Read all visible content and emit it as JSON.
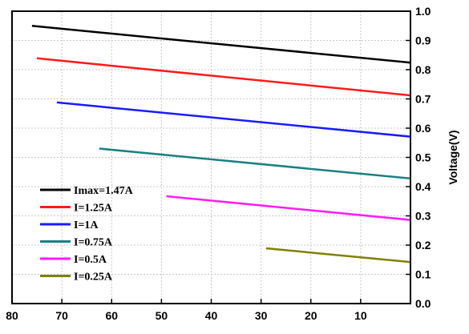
{
  "chart_data": {
    "type": "line",
    "title": "",
    "xlabel": "",
    "ylabel": "Voltage(V)",
    "xlim": [
      80,
      0
    ],
    "ylim": [
      0.0,
      1.0
    ],
    "x_ticks": [
      80,
      70,
      60,
      50,
      40,
      30,
      20,
      10
    ],
    "y_ticks": [
      0.0,
      0.1,
      0.2,
      0.3,
      0.4,
      0.5,
      0.6,
      0.7,
      0.8,
      0.9,
      1.0
    ],
    "y_axis_side": "right",
    "grid": true,
    "legend_position": "bottom-left",
    "series": [
      {
        "name": "Imax=1.47A",
        "color": "#000000",
        "x": [
          76,
          0
        ],
        "y": [
          0.95,
          0.824
        ]
      },
      {
        "name": "I=1.25A",
        "color": "#ff1a1a",
        "x": [
          75,
          0
        ],
        "y": [
          0.839,
          0.712
        ]
      },
      {
        "name": "I=1A",
        "color": "#1a1aff",
        "x": [
          71,
          0
        ],
        "y": [
          0.688,
          0.571
        ]
      },
      {
        "name": "I=0.75A",
        "color": "#1a8080",
        "x": [
          62.5,
          0
        ],
        "y": [
          0.53,
          0.428
        ]
      },
      {
        "name": "I=0.5A",
        "color": "#ff1aff",
        "x": [
          49,
          0
        ],
        "y": [
          0.367,
          0.286
        ]
      },
      {
        "name": "I=0.25A",
        "color": "#808000",
        "x": [
          29,
          0
        ],
        "y": [
          0.189,
          0.142
        ]
      }
    ]
  }
}
